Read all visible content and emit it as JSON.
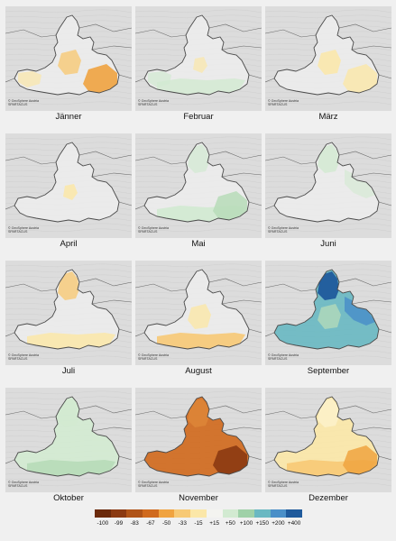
{
  "credit": {
    "line1": "© GeoSphere Austria",
    "line2": "SPARTACUS"
  },
  "colors": {
    "background_relief": "#dcdcdc",
    "region_neutral": "#ececec",
    "border": "#4a4a4a",
    "orange": "#f0a340",
    "light_orange": "#f7c975",
    "pale_yellow": "#fbe7a8",
    "pale_green": "#d2ead1",
    "light_green": "#b7dcb8",
    "teal": "#6ab8c2",
    "blue": "#4a8fc8",
    "dark_blue": "#1f5a9c",
    "burnt_orange": "#d06a1e",
    "brown": "#8b3a12"
  },
  "panels": [
    {
      "month": "Jänner",
      "base": "#ececec",
      "patches": [
        {
          "color": "#f0a340",
          "opacity": 0.9,
          "shape": "southeast"
        },
        {
          "color": "#f7c975",
          "opacity": 0.8,
          "shape": "center"
        },
        {
          "color": "#fbe7a8",
          "opacity": 0.7,
          "shape": "west"
        }
      ]
    },
    {
      "month": "Februar",
      "base": "#ececec",
      "patches": [
        {
          "color": "#d2ead1",
          "opacity": 0.8,
          "shape": "south"
        },
        {
          "color": "#fbe7a8",
          "opacity": 0.7,
          "shape": "center-small"
        },
        {
          "color": "#d2ead1",
          "opacity": 0.7,
          "shape": "west"
        }
      ]
    },
    {
      "month": "März",
      "base": "#ececec",
      "patches": [
        {
          "color": "#fbe7a8",
          "opacity": 0.85,
          "shape": "center"
        },
        {
          "color": "#fbe7a8",
          "opacity": 0.8,
          "shape": "southeast"
        }
      ]
    },
    {
      "month": "April",
      "base": "#ececec",
      "patches": [
        {
          "color": "#fbe7a8",
          "opacity": 0.85,
          "shape": "center-small"
        }
      ]
    },
    {
      "month": "Mai",
      "base": "#ececec",
      "patches": [
        {
          "color": "#d2ead1",
          "opacity": 0.9,
          "shape": "south"
        },
        {
          "color": "#b7dcb8",
          "opacity": 0.85,
          "shape": "southeast"
        },
        {
          "color": "#d2ead1",
          "opacity": 0.7,
          "shape": "north"
        }
      ]
    },
    {
      "month": "Juni",
      "base": "#ececec",
      "patches": [
        {
          "color": "#d2ead1",
          "opacity": 0.8,
          "shape": "north"
        },
        {
          "color": "#d2ead1",
          "opacity": 0.6,
          "shape": "east"
        }
      ]
    },
    {
      "month": "Juli",
      "base": "#ececec",
      "patches": [
        {
          "color": "#f7c975",
          "opacity": 0.8,
          "shape": "north"
        },
        {
          "color": "#fbe7a8",
          "opacity": 0.85,
          "shape": "south"
        }
      ]
    },
    {
      "month": "August",
      "base": "#ececec",
      "patches": [
        {
          "color": "#f7c975",
          "opacity": 0.9,
          "shape": "south"
        },
        {
          "color": "#fbe7a8",
          "opacity": 0.8,
          "shape": "center"
        }
      ]
    },
    {
      "month": "September",
      "base": "#6ab8c2",
      "patches": [
        {
          "color": "#1f5a9c",
          "opacity": 0.95,
          "shape": "north"
        },
        {
          "color": "#4a8fc8",
          "opacity": 0.85,
          "shape": "east"
        },
        {
          "color": "#b7dcb8",
          "opacity": 0.75,
          "shape": "center"
        }
      ]
    },
    {
      "month": "Oktober",
      "base": "#d2ead1",
      "patches": [
        {
          "color": "#b7dcb8",
          "opacity": 0.9,
          "shape": "south"
        },
        {
          "color": "#d2ead1",
          "opacity": 0.6,
          "shape": "north"
        }
      ]
    },
    {
      "month": "November",
      "base": "#d06a1e",
      "patches": [
        {
          "color": "#8b3a12",
          "opacity": 0.9,
          "shape": "southeast"
        },
        {
          "color": "#e08a3a",
          "opacity": 0.7,
          "shape": "north"
        }
      ]
    },
    {
      "month": "Dezember",
      "base": "#fbe7a8",
      "patches": [
        {
          "color": "#f7c975",
          "opacity": 0.9,
          "shape": "south"
        },
        {
          "color": "#f0a340",
          "opacity": 0.85,
          "shape": "southeast"
        },
        {
          "color": "#fdf2cc",
          "opacity": 0.8,
          "shape": "north"
        }
      ]
    }
  ],
  "legend": {
    "items": [
      {
        "label": "-100",
        "color": "#6b2a0c"
      },
      {
        "label": "-99",
        "color": "#8b3a12"
      },
      {
        "label": "-83",
        "color": "#b05418"
      },
      {
        "label": "-67",
        "color": "#d06a1e"
      },
      {
        "label": "-50",
        "color": "#f0a340"
      },
      {
        "label": "-33",
        "color": "#f7c975"
      },
      {
        "label": "-15",
        "color": "#fbe7a8"
      },
      {
        "label": "+15",
        "color": "#f4f4f0"
      },
      {
        "label": "+50",
        "color": "#d2ead1"
      },
      {
        "label": "+100",
        "color": "#9fd1a8"
      },
      {
        "label": "+150",
        "color": "#6ab8c2"
      },
      {
        "label": "+200",
        "color": "#4a8fc8"
      },
      {
        "label": "+400",
        "color": "#1f5a9c"
      }
    ]
  }
}
